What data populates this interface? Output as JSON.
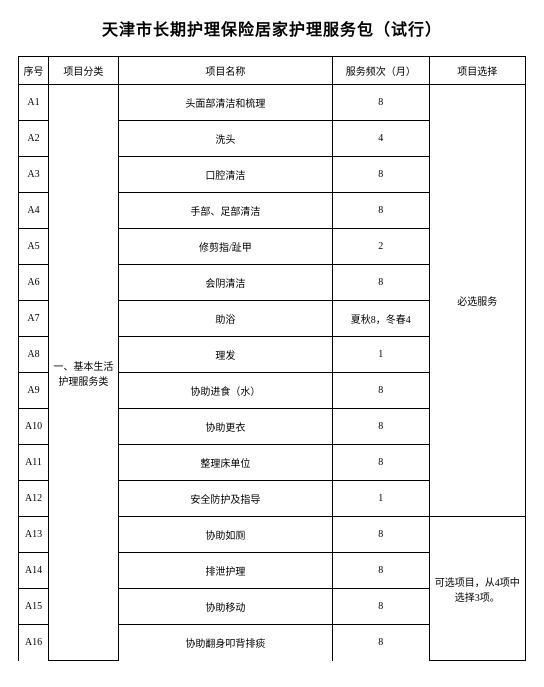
{
  "title": "天津市长期护理保险居家护理服务包（试行）",
  "columns": {
    "seq": "序号",
    "category": "项目分类",
    "name": "项目名称",
    "frequency": "服务频次（月）",
    "selection": "项目选择"
  },
  "category1": "一、基本生活护理服务类",
  "selection1": "必选服务",
  "selection2": "可选项目，从4项中选择3项。",
  "rows": {
    "r1": {
      "seq": "A1",
      "name": "头面部清洁和梳理",
      "freq": "8"
    },
    "r2": {
      "seq": "A2",
      "name": "洗头",
      "freq": "4"
    },
    "r3": {
      "seq": "A3",
      "name": "口腔清洁",
      "freq": "8"
    },
    "r4": {
      "seq": "A4",
      "name": "手部、足部清洁",
      "freq": "8"
    },
    "r5": {
      "seq": "A5",
      "name": "修剪指/趾甲",
      "freq": "2"
    },
    "r6": {
      "seq": "A6",
      "name": "会阴清洁",
      "freq": "8"
    },
    "r7": {
      "seq": "A7",
      "name": "助浴",
      "freq": "夏秋8，冬春4"
    },
    "r8": {
      "seq": "A8",
      "name": "理发",
      "freq": "1"
    },
    "r9": {
      "seq": "A9",
      "name": "协助进食（水）",
      "freq": "8"
    },
    "r10": {
      "seq": "A10",
      "name": "协助更衣",
      "freq": "8"
    },
    "r11": {
      "seq": "A11",
      "name": "整理床单位",
      "freq": "8"
    },
    "r12": {
      "seq": "A12",
      "name": "安全防护及指导",
      "freq": "1"
    },
    "r13": {
      "seq": "A13",
      "name": "协助如厕",
      "freq": "8"
    },
    "r14": {
      "seq": "A14",
      "name": "排泄护理",
      "freq": "8"
    },
    "r15": {
      "seq": "A15",
      "name": "协助移动",
      "freq": "8"
    },
    "r16": {
      "seq": "A16",
      "name": "协助翻身叩背排痰",
      "freq": "8"
    }
  }
}
